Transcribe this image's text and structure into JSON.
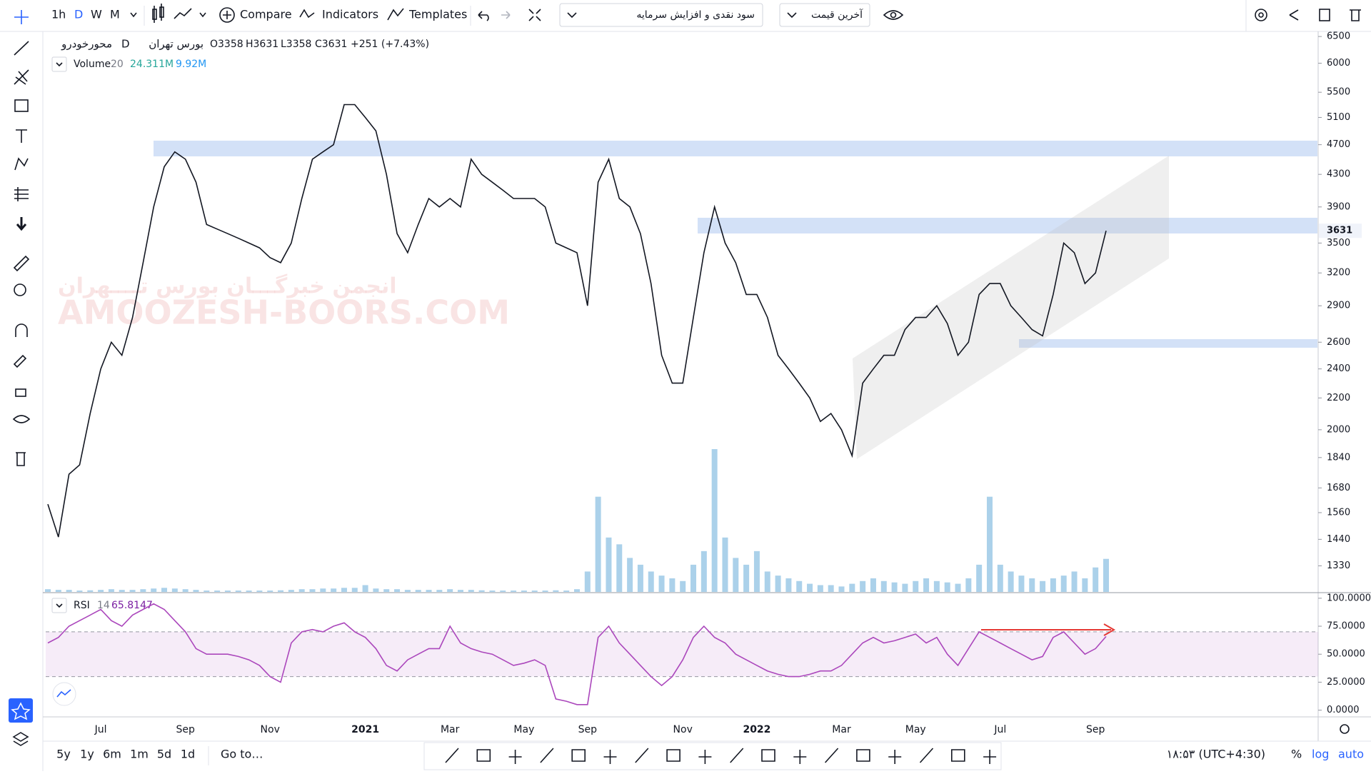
{
  "toolbar": {
    "intervals": [
      "1h",
      "D",
      "W",
      "M"
    ],
    "compare": "Compare",
    "indicators": "Indicators",
    "templates": "Templates",
    "dividend_select": "سود نقدی و افزایش سرمایه",
    "price_select": "آخرین قیمت"
  },
  "legend": {
    "symbol": "محورخودرو",
    "interval": "D",
    "exchange": "بورس تهران",
    "open": "O3358",
    "high": "H3631",
    "low": "L3358",
    "close": "C3631",
    "change": "+251 (+7.43%)"
  },
  "watermark": {
    "line1": "انجمن خبرگـــان بورس تــــهران",
    "line2": "AMOOZESH-BOORS.COM"
  },
  "chart_data": [
    {
      "type": "line",
      "color": "#131722",
      "log_scale": true,
      "ylim": [
        1230,
        6600
      ],
      "yticks": [
        6500,
        6000,
        5500,
        5100,
        4700,
        4300,
        3900,
        3500,
        3200,
        2900,
        2600,
        2400,
        2200,
        2000,
        1840,
        1680,
        1560,
        1440,
        1330
      ],
      "categories": [
        null,
        null,
        null,
        null,
        null,
        "Jul",
        null,
        null,
        null,
        null,
        null,
        null,
        null,
        "Sep",
        null,
        null,
        null,
        null,
        null,
        null,
        null,
        "Nov",
        null,
        null,
        null,
        null,
        null,
        null,
        null,
        null,
        "2021",
        null,
        null,
        null,
        null,
        null,
        null,
        null,
        "Mar",
        null,
        null,
        null,
        null,
        null,
        null,
        "May",
        null,
        null,
        null,
        null,
        null,
        "Sep",
        null,
        null,
        null,
        null,
        null,
        null,
        null,
        null,
        "Nov",
        null,
        null,
        null,
        null,
        null,
        null,
        "2022",
        null,
        null,
        null,
        null,
        null,
        null,
        null,
        "Mar",
        null,
        null,
        null,
        null,
        null,
        null,
        "May",
        null,
        null,
        null,
        null,
        null,
        null,
        null,
        "Jul",
        null,
        null,
        null,
        null,
        null,
        null,
        null,
        null,
        "Sep",
        null
      ],
      "values": [
        1600,
        1450,
        1750,
        1800,
        2100,
        2400,
        2600,
        2500,
        2800,
        3300,
        3900,
        4400,
        4600,
        4500,
        4200,
        3700,
        3650,
        3600,
        3550,
        3500,
        3450,
        3350,
        3300,
        3500,
        4000,
        4500,
        4600,
        4700,
        5300,
        5300,
        5100,
        4900,
        4300,
        3600,
        3400,
        3700,
        4000,
        3900,
        4000,
        3900,
        4500,
        4300,
        4200,
        4100,
        4000,
        4000,
        4000,
        3900,
        3500,
        3450,
        3400,
        2900,
        4200,
        4500,
        4000,
        3900,
        3600,
        3100,
        2500,
        2300,
        2300,
        2800,
        3400,
        3900,
        3500,
        3300,
        3000,
        3000,
        2800,
        2500,
        2400,
        2300,
        2200,
        2050,
        2100,
        2000,
        1850,
        2300,
        2400,
        2500,
        2500,
        2700,
        2800,
        2800,
        2900,
        2750,
        2500,
        2600,
        3000,
        3100,
        3100,
        2900,
        2800,
        2700,
        2650,
        3000,
        3500,
        3400,
        3100,
        3200,
        3631
      ]
    },
    {
      "type": "bar",
      "name": "Volume",
      "length_label": "20",
      "last_label": "24.311M",
      "ma_label": "9.92M",
      "color": "#8fc1e3",
      "values": [
        2,
        1.5,
        1.5,
        1,
        1.2,
        1.5,
        2,
        1.5,
        1.5,
        2,
        2.5,
        3,
        2.5,
        2,
        1.5,
        1,
        1,
        1,
        1,
        1,
        1,
        1,
        1.2,
        1.5,
        2,
        2,
        2.5,
        2.5,
        3,
        3,
        5,
        2.5,
        2,
        2,
        1.5,
        1.5,
        1.5,
        1.5,
        2,
        1.5,
        1.5,
        1.2,
        1,
        1,
        1,
        1,
        1,
        1,
        1.2,
        1,
        2,
        15,
        70,
        40,
        35,
        25,
        20,
        15,
        12,
        10,
        8,
        20,
        30,
        105,
        40,
        25,
        20,
        30,
        15,
        12,
        10,
        8,
        6,
        5,
        5,
        4,
        6,
        8,
        10,
        8,
        7,
        6,
        8,
        10,
        8,
        7,
        6,
        10,
        20,
        70,
        20,
        15,
        12,
        10,
        8,
        10,
        12,
        15,
        10,
        18,
        24.311
      ]
    },
    {
      "type": "line",
      "name": "RSI",
      "length_label": "14",
      "color": "#ab47bc",
      "ylim": [
        -6,
        105
      ],
      "yticks": [
        {
          "value": 100,
          "label": "100.0000"
        },
        {
          "value": 75,
          "label": "75.0000"
        },
        {
          "value": 50,
          "label": "50.0000"
        },
        {
          "value": 25,
          "label": "25.0000"
        },
        {
          "value": 0,
          "label": "0.0000"
        }
      ],
      "bands": [
        30,
        70
      ],
      "values": [
        60,
        65,
        75,
        80,
        85,
        90,
        80,
        75,
        85,
        90,
        95,
        90,
        80,
        70,
        55,
        50,
        50,
        50,
        48,
        45,
        40,
        30,
        25,
        60,
        70,
        72,
        70,
        75,
        78,
        70,
        65,
        55,
        40,
        35,
        45,
        50,
        55,
        55,
        75,
        60,
        55,
        52,
        50,
        45,
        40,
        42,
        45,
        40,
        10,
        8,
        5,
        5,
        65,
        75,
        60,
        50,
        40,
        30,
        22,
        30,
        45,
        65,
        75,
        65,
        60,
        50,
        45,
        40,
        35,
        32,
        30,
        30,
        32,
        35,
        35,
        40,
        50,
        60,
        65,
        60,
        62,
        65,
        68,
        60,
        65,
        50,
        40,
        55,
        70,
        65,
        60,
        55,
        50,
        45,
        48,
        65,
        70,
        60,
        50,
        55,
        65.8147
      ]
    }
  ],
  "bottom_bar": {
    "ranges": [
      "5y",
      "1y",
      "6m",
      "1m",
      "5d",
      "1d"
    ],
    "goto": "Go to…",
    "clock": "۱۸:۵۳ (UTC+4:30)",
    "percent": "%",
    "log": "log",
    "auto": "auto"
  }
}
